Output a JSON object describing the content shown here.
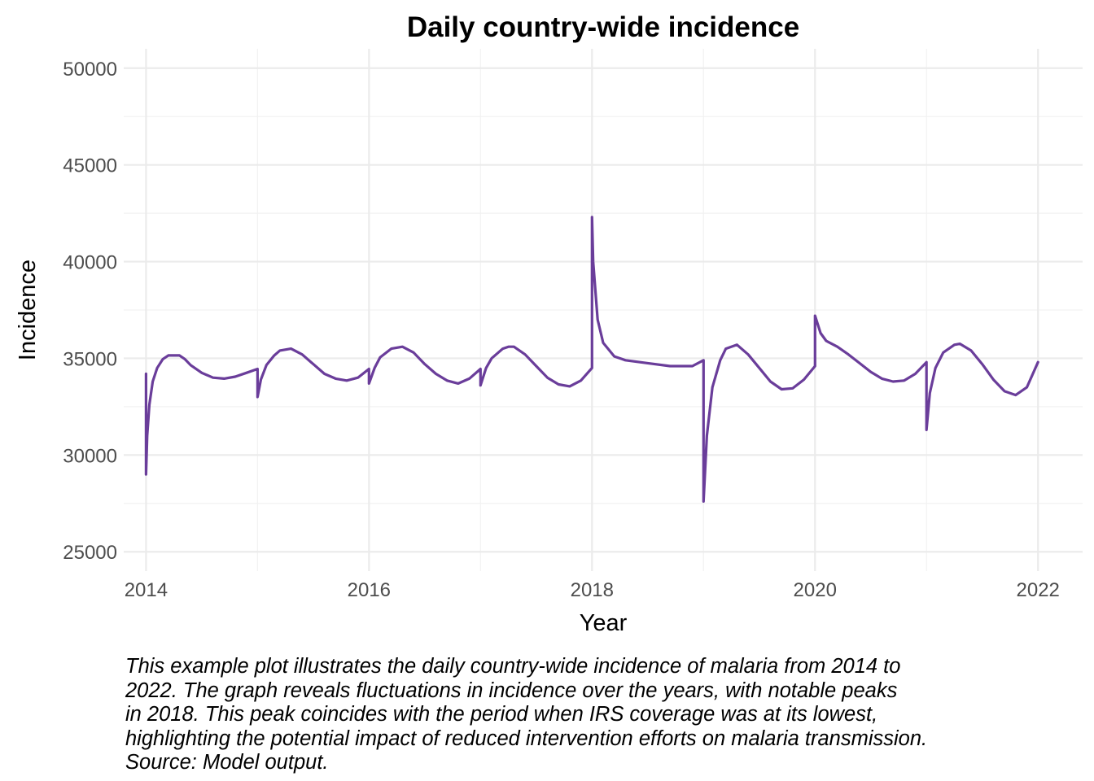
{
  "chart_data": {
    "type": "line",
    "title": "Daily country-wide incidence",
    "xlabel": "Year",
    "ylabel": "Incidence",
    "xlim": [
      2013.8,
      2022.4
    ],
    "ylim": [
      24000,
      51000
    ],
    "x_ticks": [
      2014,
      2016,
      2018,
      2020,
      2022
    ],
    "y_ticks": [
      25000,
      30000,
      35000,
      40000,
      45000,
      50000
    ],
    "grid": true,
    "line_color": "#6a3d9a",
    "series": [
      {
        "x": [
          2014.0,
          2014.0,
          2014.01,
          2014.03,
          2014.06,
          2014.1,
          2014.15,
          2014.2,
          2014.3,
          2014.35,
          2014.4,
          2014.5,
          2014.6,
          2014.7,
          2014.8,
          2014.9,
          2015.0,
          2015.0,
          2015.03,
          2015.08,
          2015.15,
          2015.2,
          2015.3,
          2015.4,
          2015.5,
          2015.6,
          2015.7,
          2015.8,
          2015.9,
          2016.0,
          2016.0,
          2016.05,
          2016.1,
          2016.2,
          2016.3,
          2016.4,
          2016.5,
          2016.6,
          2016.7,
          2016.8,
          2016.9,
          2017.0,
          2017.0,
          2017.05,
          2017.1,
          2017.2,
          2017.25,
          2017.3,
          2017.4,
          2017.5,
          2017.6,
          2017.7,
          2017.8,
          2017.9,
          2018.0,
          2018.0,
          2018.01,
          2018.05,
          2018.1,
          2018.2,
          2018.3,
          2018.5,
          2018.7,
          2018.9,
          2019.0,
          2019.0,
          2019.03,
          2019.08,
          2019.15,
          2019.2,
          2019.3,
          2019.4,
          2019.5,
          2019.6,
          2019.7,
          2019.8,
          2019.9,
          2020.0,
          2020.0,
          2020.05,
          2020.1,
          2020.2,
          2020.3,
          2020.4,
          2020.5,
          2020.6,
          2020.7,
          2020.8,
          2020.9,
          2021.0,
          2021.0,
          2021.03,
          2021.08,
          2021.15,
          2021.25,
          2021.3,
          2021.4,
          2021.5,
          2021.6,
          2021.7,
          2021.8,
          2021.9,
          2022.0
        ],
        "values": [
          34200,
          29000,
          31000,
          32600,
          33800,
          34500,
          34950,
          35150,
          35150,
          34950,
          34650,
          34250,
          34000,
          33950,
          34050,
          34250,
          34450,
          33000,
          33900,
          34650,
          35150,
          35400,
          35500,
          35200,
          34700,
          34200,
          33950,
          33850,
          34000,
          34450,
          33700,
          34500,
          35050,
          35500,
          35600,
          35300,
          34700,
          34200,
          33850,
          33700,
          33950,
          34450,
          33600,
          34500,
          35000,
          35500,
          35600,
          35600,
          35200,
          34600,
          34000,
          33650,
          33550,
          33850,
          34500,
          42300,
          40000,
          37000,
          35800,
          35100,
          34900,
          34750,
          34600,
          34600,
          34900,
          27600,
          31000,
          33500,
          34900,
          35500,
          35700,
          35200,
          34500,
          33800,
          33400,
          33450,
          33900,
          34600,
          37200,
          36300,
          35900,
          35600,
          35200,
          34750,
          34300,
          33950,
          33800,
          33850,
          34200,
          34800,
          31300,
          33200,
          34500,
          35300,
          35700,
          35750,
          35400,
          34700,
          33900,
          33300,
          33100,
          33500,
          34800
        ]
      }
    ]
  },
  "caption": {
    "lines": [
      "This example plot illustrates the daily country-wide incidence of malaria from 2014 to",
      "2022. The graph reveals fluctuations in incidence over the years, with notable peaks",
      "in 2018. This peak coincides with the period when IRS coverage was at its lowest,",
      "highlighting the potential impact of reduced intervention efforts on malaria transmission.",
      "Source: Model output."
    ]
  }
}
